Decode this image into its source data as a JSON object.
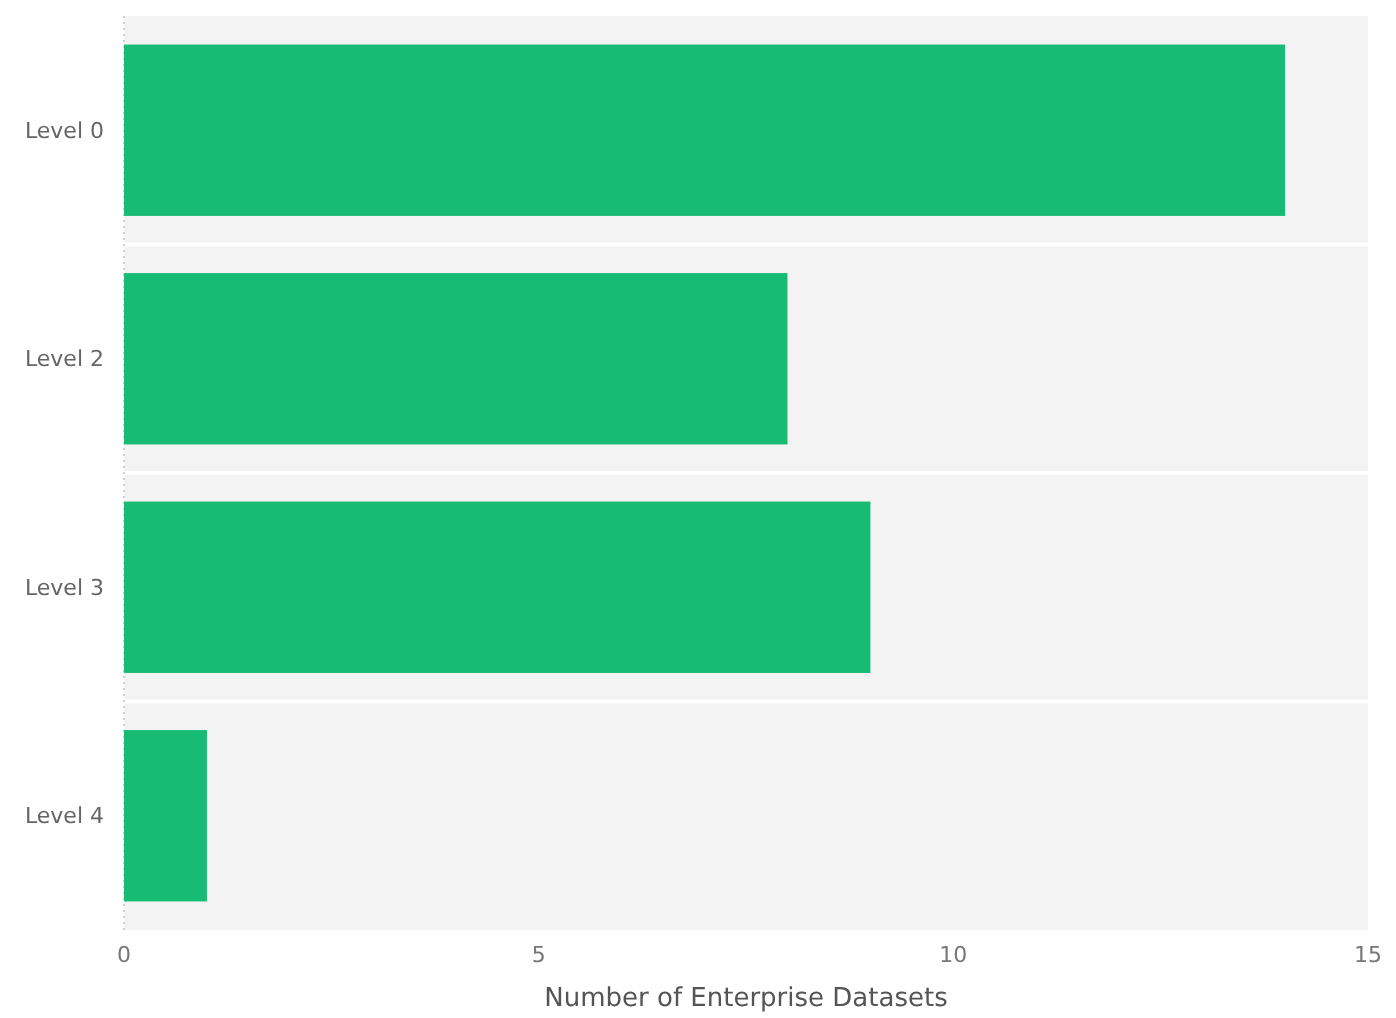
{
  "chart_data": {
    "type": "bar",
    "orientation": "horizontal",
    "xlabel": "Number of Enterprise Datasets",
    "categories": [
      "Level 0",
      "Level 2",
      "Level 3",
      "Level 4"
    ],
    "values": [
      14,
      8,
      9,
      1
    ],
    "color": "#18bb73",
    "xlim": [
      0,
      15
    ],
    "xticks": [
      0,
      5,
      10,
      15
    ]
  }
}
